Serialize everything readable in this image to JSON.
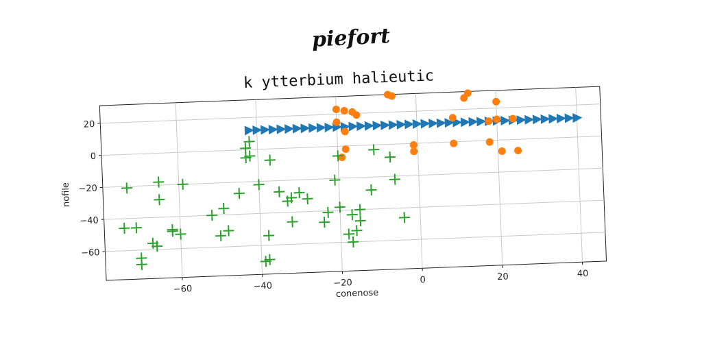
{
  "suptitle": "piefort",
  "chart_data": {
    "type": "scatter",
    "title": "k ytterbium halieutic",
    "xlabel": "conenose",
    "ylabel": "nofile",
    "xlim": [
      -79,
      46
    ],
    "ylim": [
      -78,
      31
    ],
    "xticks": [
      -60,
      -40,
      -20,
      0,
      20,
      40
    ],
    "yticks": [
      20,
      0,
      -20,
      -40,
      -60
    ],
    "grid": true,
    "series": [
      {
        "marker": "triangle-right",
        "color": "#1f77b4",
        "x": [
          -42,
          -40,
          -38,
          -36,
          -34,
          -32,
          -30,
          -28,
          -26,
          -24,
          -22,
          -20,
          -18,
          -16,
          -14,
          -12,
          -10,
          -8,
          -6,
          -4,
          -2,
          0,
          2,
          4,
          6,
          8,
          10,
          12,
          14,
          16,
          18,
          20,
          22,
          24,
          26,
          28,
          30,
          32,
          34,
          36,
          38,
          40
        ],
        "y": [
          12,
          12,
          12,
          12,
          12,
          12,
          12,
          12,
          12,
          12,
          12,
          12,
          12,
          12,
          12,
          12,
          12,
          12,
          12,
          12,
          12,
          12,
          12,
          12,
          12,
          12,
          12,
          12,
          12,
          12,
          12,
          12,
          12,
          12,
          12,
          12,
          12,
          12,
          12,
          12,
          12,
          12
        ]
      },
      {
        "marker": "circle",
        "color": "#ff7f0e",
        "x": [
          -20,
          -18,
          -16,
          -15,
          -18,
          -20,
          -18,
          -19,
          -7,
          -6,
          -1,
          -1,
          9,
          9,
          12,
          13,
          18,
          18,
          20,
          20,
          21,
          24,
          25
        ],
        "y": [
          23,
          22,
          21,
          19,
          9,
          15,
          -2,
          -7,
          31,
          30,
          -1,
          -5,
          15,
          -1,
          27,
          30,
          12,
          -1,
          24,
          13,
          -7,
          13,
          -7
        ]
      },
      {
        "marker": "plus",
        "color": "#2ca02c",
        "x": [
          -73,
          -74,
          -71,
          -70,
          -70,
          -67,
          -66,
          -65,
          -65,
          -62,
          -62,
          -60,
          -59,
          -52,
          -50,
          -49,
          -48,
          -45,
          -43,
          -43,
          -42,
          -42,
          -40,
          -39,
          -38,
          -38,
          -37,
          -35,
          -33,
          -32,
          -32,
          -30,
          -28,
          -24,
          -23,
          -21,
          -20,
          -20,
          -18,
          -17,
          -17,
          -16,
          -15,
          -15,
          -12,
          -11,
          -7,
          -6,
          -4
        ],
        "y": [
          -21,
          -46,
          -46,
          -65,
          -69,
          -56,
          -58,
          -18,
          -29,
          -48,
          -49,
          -51,
          -20,
          -40,
          -53,
          -36,
          -50,
          -27,
          1,
          -5,
          -4,
          5,
          -22,
          -70,
          -69,
          -54,
          -7,
          -27,
          -33,
          -31,
          -46,
          -28,
          -32,
          -47,
          -41,
          -21,
          -6,
          -38,
          -55,
          -60,
          -43,
          -53,
          -40,
          -47,
          -28,
          -3,
          -8,
          -22,
          -46
        ]
      }
    ]
  }
}
